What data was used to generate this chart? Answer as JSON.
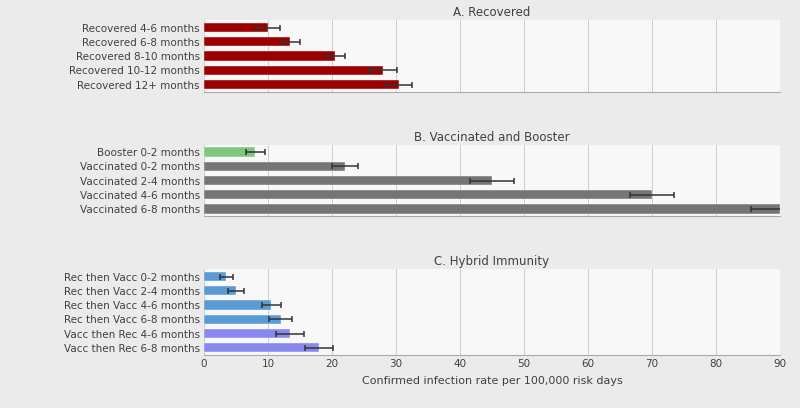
{
  "panel_a": {
    "title": "A. Recovered",
    "labels": [
      "Recovered 4-6 months",
      "Recovered 6-8 months",
      "Recovered 8-10 months",
      "Recovered 10-12 months",
      "Recovered 12+ months"
    ],
    "values": [
      10.0,
      13.5,
      20.5,
      28.0,
      30.5
    ],
    "errors": [
      1.8,
      1.5,
      1.5,
      2.2,
      2.0
    ],
    "color": "#9b0000"
  },
  "panel_b": {
    "title": "B. Vaccinated and Booster",
    "labels": [
      "Booster 0-2 months",
      "Vaccinated 0-2 months",
      "Vaccinated 2-4 months",
      "Vaccinated 4-6 months",
      "Vaccinated 6-8 months"
    ],
    "values": [
      8.0,
      22.0,
      45.0,
      70.0,
      90.0
    ],
    "errors": [
      1.5,
      2.0,
      3.5,
      3.5,
      4.5
    ],
    "colors": [
      "#7ec87e",
      "#757575",
      "#757575",
      "#757575",
      "#757575"
    ]
  },
  "panel_c": {
    "title": "C. Hybrid Immunity",
    "labels": [
      "Rec then Vacc 0-2 months",
      "Rec then Vacc 2-4 months",
      "Rec then Vacc 4-6 months",
      "Rec then Vacc 6-8 months",
      "Vacc then Rec 4-6 months",
      "Vacc then Rec 6-8 months"
    ],
    "values": [
      3.5,
      5.0,
      10.5,
      12.0,
      13.5,
      18.0
    ],
    "errors": [
      1.0,
      1.2,
      1.5,
      1.8,
      2.2,
      2.2
    ],
    "colors": [
      "#5b9bd5",
      "#5b9bd5",
      "#5b9bd5",
      "#5b9bd5",
      "#8888ee",
      "#8888ee"
    ]
  },
  "xlim": [
    0,
    90
  ],
  "xticks": [
    0,
    10,
    20,
    30,
    40,
    50,
    60,
    70,
    80,
    90
  ],
  "xlabel": "Confirmed infection rate per 100,000 risk days",
  "bg_color": "#ebebeb",
  "panel_bg": "#f8f8f8",
  "grid_color": "#cccccc"
}
